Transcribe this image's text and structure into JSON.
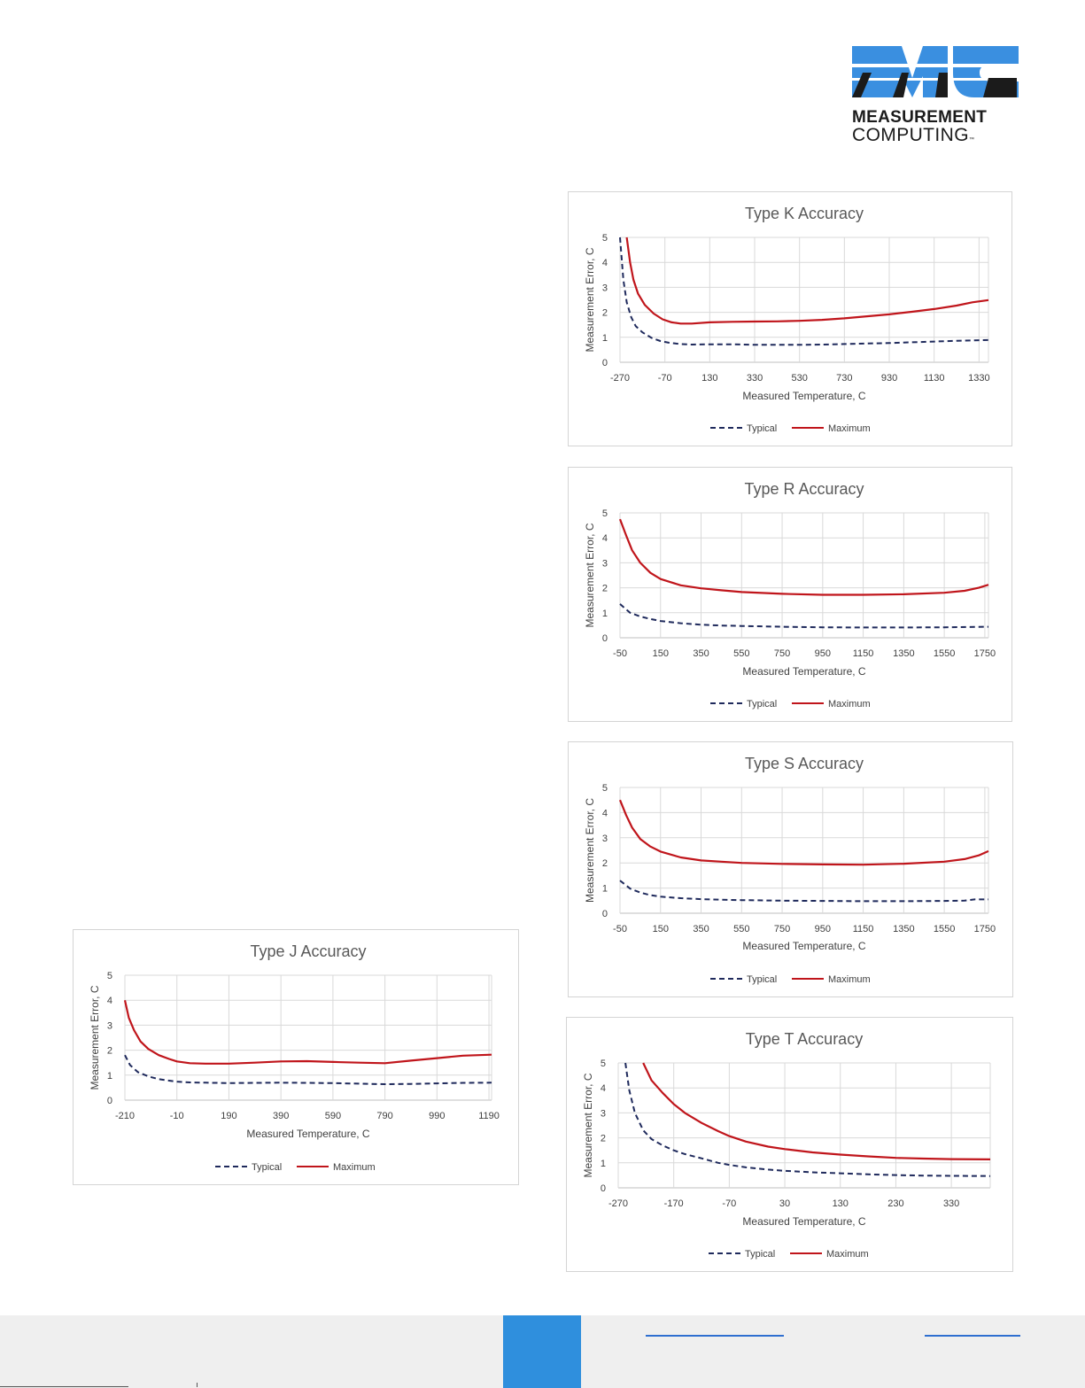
{
  "logo": {
    "line1": "MEASUREMENT",
    "line2": "COMPUTING",
    "tm": "™",
    "color": "#3a8fe0"
  },
  "colors": {
    "typical": "#1f2a5c",
    "maximum": "#c0151b",
    "grid": "#d9d9d9",
    "axis": "#bfbfbf",
    "text": "#404040"
  },
  "chart_data": [
    {
      "id": "K",
      "type": "line",
      "title": "Type K Accuracy",
      "xlabel": "Measured Temperature, C",
      "ylabel": "Measurement Error, C",
      "xlim": [
        -270,
        1372
      ],
      "ylim": [
        0,
        5
      ],
      "xticks": [
        -270,
        -70,
        130,
        330,
        530,
        730,
        930,
        1130,
        1330
      ],
      "yticks": [
        0,
        1,
        2,
        3,
        4,
        5
      ],
      "grid": true,
      "legend": "bottom",
      "series": [
        {
          "name": "Typical",
          "style": "dashed",
          "points": [
            [
              -270,
              5
            ],
            [
              -255,
              3.3
            ],
            [
              -240,
              2.4
            ],
            [
              -220,
              1.8
            ],
            [
              -200,
              1.45
            ],
            [
              -170,
              1.2
            ],
            [
              -130,
              0.98
            ],
            [
              -90,
              0.85
            ],
            [
              -50,
              0.78
            ],
            [
              0,
              0.73
            ],
            [
              50,
              0.71
            ],
            [
              130,
              0.72
            ],
            [
              230,
              0.72
            ],
            [
              330,
              0.7
            ],
            [
              430,
              0.7
            ],
            [
              530,
              0.7
            ],
            [
              630,
              0.71
            ],
            [
              730,
              0.73
            ],
            [
              830,
              0.75
            ],
            [
              930,
              0.77
            ],
            [
              1030,
              0.8
            ],
            [
              1130,
              0.83
            ],
            [
              1230,
              0.86
            ],
            [
              1372,
              0.89
            ]
          ]
        },
        {
          "name": "Maximum",
          "style": "solid",
          "points": [
            [
              -240,
              5
            ],
            [
              -225,
              4.0
            ],
            [
              -210,
              3.3
            ],
            [
              -190,
              2.75
            ],
            [
              -160,
              2.3
            ],
            [
              -120,
              1.95
            ],
            [
              -80,
              1.72
            ],
            [
              -40,
              1.6
            ],
            [
              0,
              1.55
            ],
            [
              50,
              1.55
            ],
            [
              130,
              1.6
            ],
            [
              230,
              1.62
            ],
            [
              330,
              1.63
            ],
            [
              430,
              1.64
            ],
            [
              530,
              1.66
            ],
            [
              630,
              1.7
            ],
            [
              730,
              1.76
            ],
            [
              830,
              1.84
            ],
            [
              930,
              1.92
            ],
            [
              1030,
              2.02
            ],
            [
              1130,
              2.13
            ],
            [
              1230,
              2.27
            ],
            [
              1300,
              2.4
            ],
            [
              1372,
              2.49
            ]
          ]
        }
      ]
    },
    {
      "id": "R",
      "type": "line",
      "title": "Type R Accuracy",
      "xlabel": "Measured Temperature, C",
      "ylabel": "Measurement Error, C",
      "xlim": [
        -50,
        1768
      ],
      "ylim": [
        0,
        5
      ],
      "xticks": [
        -50,
        150,
        350,
        550,
        750,
        950,
        1150,
        1350,
        1550,
        1750
      ],
      "yticks": [
        0,
        1,
        2,
        3,
        4,
        5
      ],
      "grid": true,
      "legend": "bottom",
      "series": [
        {
          "name": "Typical",
          "style": "dashed",
          "points": [
            [
              -50,
              1.35
            ],
            [
              0,
              1.0
            ],
            [
              50,
              0.85
            ],
            [
              100,
              0.75
            ],
            [
              150,
              0.67
            ],
            [
              250,
              0.58
            ],
            [
              350,
              0.52
            ],
            [
              450,
              0.49
            ],
            [
              550,
              0.47
            ],
            [
              750,
              0.44
            ],
            [
              950,
              0.42
            ],
            [
              1150,
              0.41
            ],
            [
              1350,
              0.41
            ],
            [
              1550,
              0.42
            ],
            [
              1768,
              0.44
            ]
          ]
        },
        {
          "name": "Maximum",
          "style": "solid",
          "points": [
            [
              -50,
              4.75
            ],
            [
              -20,
              4.1
            ],
            [
              10,
              3.5
            ],
            [
              50,
              3.0
            ],
            [
              100,
              2.6
            ],
            [
              150,
              2.35
            ],
            [
              250,
              2.1
            ],
            [
              350,
              1.98
            ],
            [
              450,
              1.9
            ],
            [
              550,
              1.83
            ],
            [
              750,
              1.76
            ],
            [
              950,
              1.72
            ],
            [
              1150,
              1.72
            ],
            [
              1350,
              1.74
            ],
            [
              1550,
              1.8
            ],
            [
              1650,
              1.88
            ],
            [
              1720,
              2.0
            ],
            [
              1768,
              2.12
            ]
          ]
        }
      ]
    },
    {
      "id": "S",
      "type": "line",
      "title": "Type S Accuracy",
      "xlabel": "Measured Temperature, C",
      "ylabel": "Measurement Error, C",
      "xlim": [
        -50,
        1768
      ],
      "ylim": [
        0,
        5
      ],
      "xticks": [
        -50,
        150,
        350,
        550,
        750,
        950,
        1150,
        1350,
        1550,
        1750
      ],
      "yticks": [
        0,
        1,
        2,
        3,
        4,
        5
      ],
      "grid": true,
      "legend": "bottom",
      "series": [
        {
          "name": "Typical",
          "style": "dashed",
          "points": [
            [
              -50,
              1.3
            ],
            [
              0,
              0.98
            ],
            [
              50,
              0.82
            ],
            [
              100,
              0.72
            ],
            [
              150,
              0.66
            ],
            [
              250,
              0.6
            ],
            [
              350,
              0.56
            ],
            [
              450,
              0.54
            ],
            [
              550,
              0.52
            ],
            [
              750,
              0.5
            ],
            [
              950,
              0.49
            ],
            [
              1150,
              0.48
            ],
            [
              1350,
              0.48
            ],
            [
              1550,
              0.49
            ],
            [
              1650,
              0.5
            ],
            [
              1700,
              0.55
            ],
            [
              1768,
              0.55
            ]
          ]
        },
        {
          "name": "Maximum",
          "style": "solid",
          "points": [
            [
              -50,
              4.5
            ],
            [
              -20,
              3.9
            ],
            [
              10,
              3.4
            ],
            [
              50,
              2.95
            ],
            [
              100,
              2.65
            ],
            [
              150,
              2.45
            ],
            [
              250,
              2.22
            ],
            [
              350,
              2.1
            ],
            [
              450,
              2.05
            ],
            [
              550,
              2.0
            ],
            [
              750,
              1.96
            ],
            [
              950,
              1.94
            ],
            [
              1150,
              1.93
            ],
            [
              1350,
              1.97
            ],
            [
              1550,
              2.05
            ],
            [
              1650,
              2.15
            ],
            [
              1720,
              2.3
            ],
            [
              1768,
              2.47
            ]
          ]
        }
      ]
    },
    {
      "id": "T",
      "type": "line",
      "title": "Type T Accuracy",
      "xlabel": "Measured Temperature, C",
      "ylabel": "Measurement Error, C",
      "xlim": [
        -270,
        400
      ],
      "ylim": [
        0,
        5
      ],
      "xticks": [
        -270,
        -170,
        -70,
        30,
        130,
        230,
        330
      ],
      "yticks": [
        0,
        1,
        2,
        3,
        4,
        5
      ],
      "grid": true,
      "legend": "bottom",
      "series": [
        {
          "name": "Typical",
          "style": "dashed",
          "points": [
            [
              -257,
              5
            ],
            [
              -250,
              3.9
            ],
            [
              -240,
              3.0
            ],
            [
              -225,
              2.3
            ],
            [
              -210,
              1.95
            ],
            [
              -190,
              1.7
            ],
            [
              -170,
              1.5
            ],
            [
              -150,
              1.35
            ],
            [
              -120,
              1.18
            ],
            [
              -90,
              1.0
            ],
            [
              -70,
              0.92
            ],
            [
              -40,
              0.82
            ],
            [
              0,
              0.73
            ],
            [
              30,
              0.68
            ],
            [
              80,
              0.62
            ],
            [
              130,
              0.58
            ],
            [
              180,
              0.54
            ],
            [
              230,
              0.51
            ],
            [
              280,
              0.49
            ],
            [
              330,
              0.48
            ],
            [
              400,
              0.47
            ]
          ]
        },
        {
          "name": "Maximum",
          "style": "solid",
          "points": [
            [
              -225,
              5
            ],
            [
              -210,
              4.3
            ],
            [
              -190,
              3.8
            ],
            [
              -170,
              3.35
            ],
            [
              -150,
              3.0
            ],
            [
              -120,
              2.6
            ],
            [
              -90,
              2.27
            ],
            [
              -70,
              2.07
            ],
            [
              -40,
              1.85
            ],
            [
              0,
              1.65
            ],
            [
              30,
              1.55
            ],
            [
              80,
              1.42
            ],
            [
              130,
              1.33
            ],
            [
              180,
              1.26
            ],
            [
              230,
              1.2
            ],
            [
              280,
              1.17
            ],
            [
              330,
              1.15
            ],
            [
              400,
              1.14
            ]
          ]
        }
      ]
    },
    {
      "id": "J",
      "type": "line",
      "title": "Type J Accuracy",
      "xlabel": "Measured Temperature, C",
      "ylabel": "Measurement Error, C",
      "xlim": [
        -210,
        1200
      ],
      "ylim": [
        0,
        5
      ],
      "xticks": [
        -210,
        -10,
        190,
        390,
        590,
        790,
        990,
        1190
      ],
      "yticks": [
        0,
        1,
        2,
        3,
        4,
        5
      ],
      "grid": true,
      "legend": "bottom",
      "series": [
        {
          "name": "Typical",
          "style": "dashed",
          "points": [
            [
              -210,
              1.8
            ],
            [
              -190,
              1.4
            ],
            [
              -160,
              1.12
            ],
            [
              -120,
              0.95
            ],
            [
              -80,
              0.84
            ],
            [
              -40,
              0.78
            ],
            [
              -10,
              0.74
            ],
            [
              40,
              0.71
            ],
            [
              100,
              0.7
            ],
            [
              190,
              0.68
            ],
            [
              290,
              0.69
            ],
            [
              390,
              0.7
            ],
            [
              490,
              0.69
            ],
            [
              590,
              0.68
            ],
            [
              690,
              0.66
            ],
            [
              790,
              0.64
            ],
            [
              890,
              0.65
            ],
            [
              990,
              0.67
            ],
            [
              1090,
              0.69
            ],
            [
              1200,
              0.7
            ]
          ]
        },
        {
          "name": "Maximum",
          "style": "solid",
          "points": [
            [
              -210,
              4.0
            ],
            [
              -195,
              3.3
            ],
            [
              -175,
              2.8
            ],
            [
              -150,
              2.35
            ],
            [
              -120,
              2.05
            ],
            [
              -80,
              1.8
            ],
            [
              -40,
              1.65
            ],
            [
              -10,
              1.55
            ],
            [
              40,
              1.48
            ],
            [
              100,
              1.46
            ],
            [
              190,
              1.46
            ],
            [
              290,
              1.5
            ],
            [
              390,
              1.55
            ],
            [
              490,
              1.56
            ],
            [
              590,
              1.53
            ],
            [
              690,
              1.5
            ],
            [
              790,
              1.48
            ],
            [
              890,
              1.58
            ],
            [
              990,
              1.68
            ],
            [
              1090,
              1.78
            ],
            [
              1200,
              1.82
            ]
          ]
        }
      ]
    }
  ]
}
